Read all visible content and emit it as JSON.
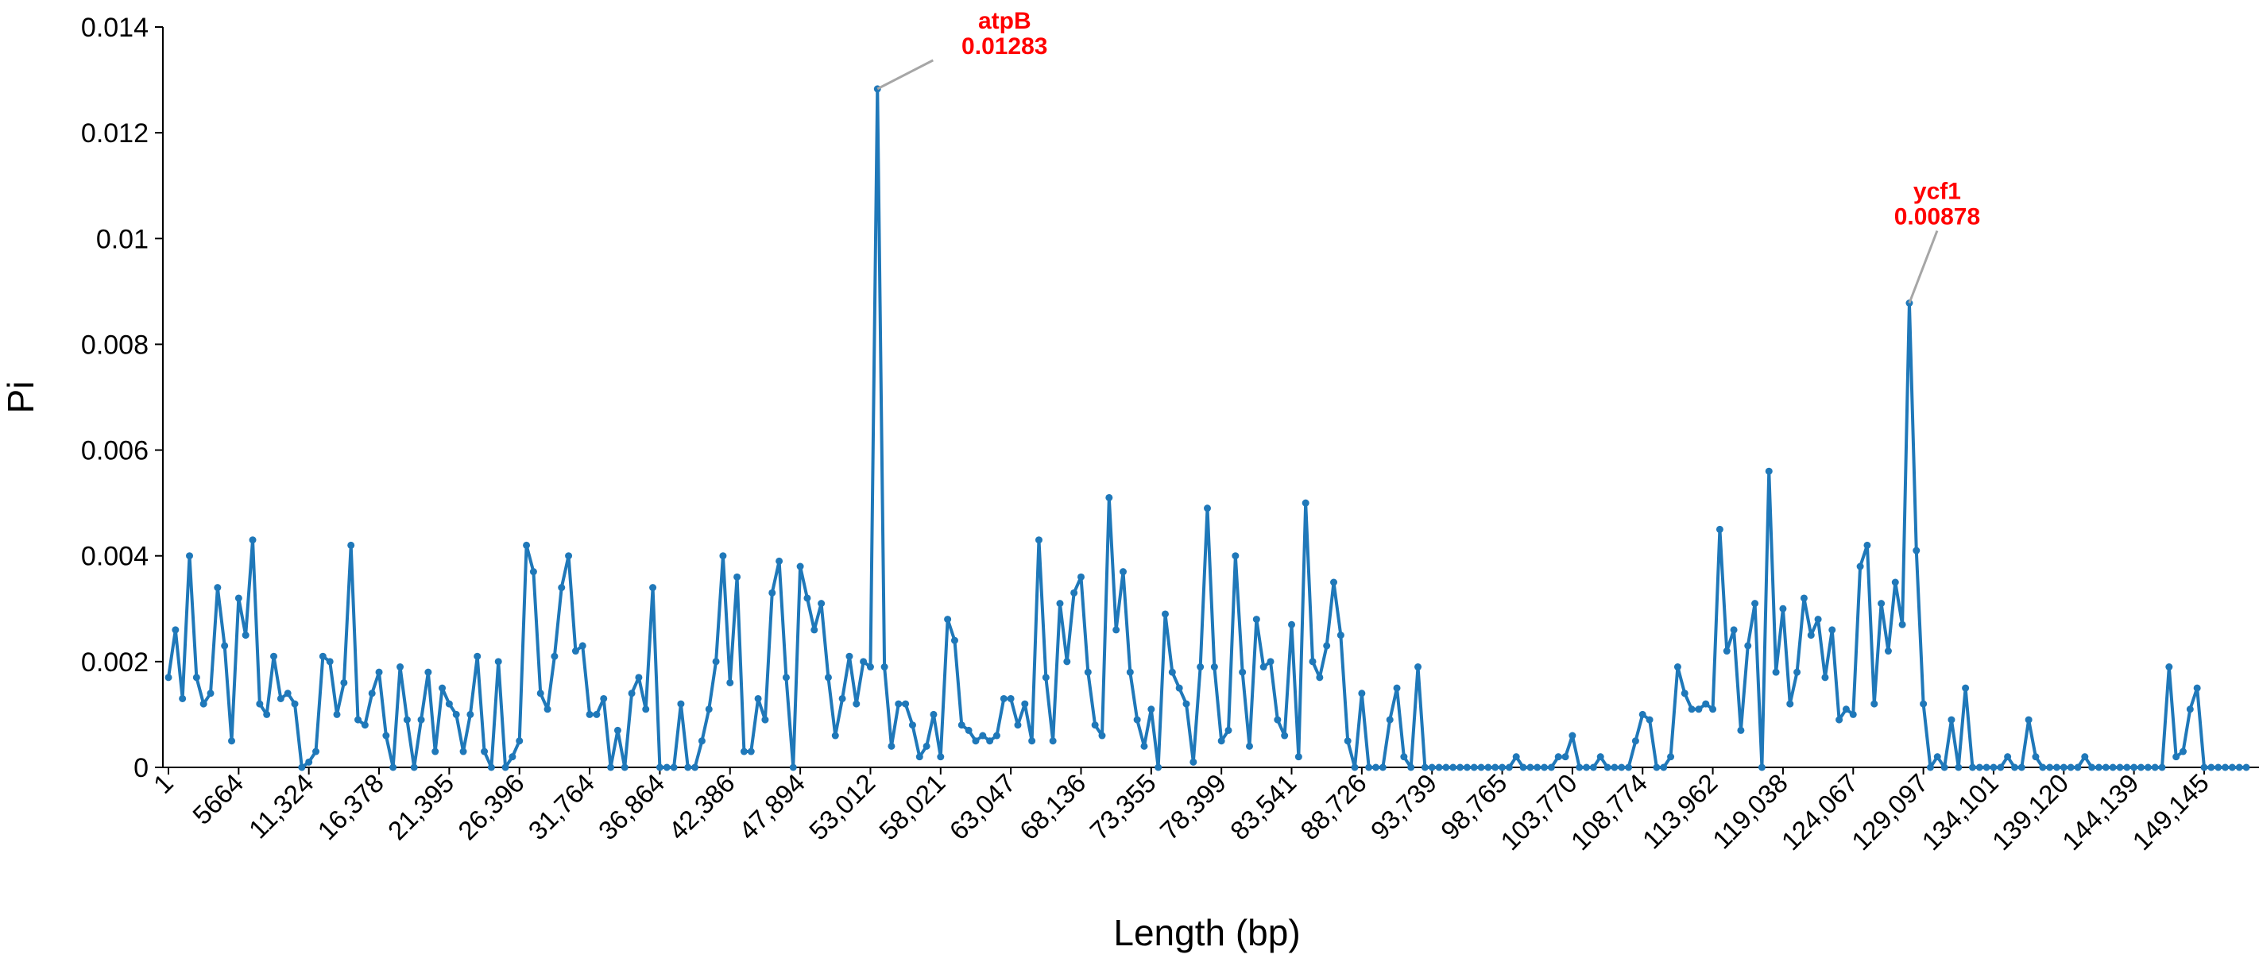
{
  "chart_data": {
    "type": "line",
    "y_label": "Pi",
    "x_label": "Length (bp)",
    "color": "#1f78b9",
    "annotation_color": "#ff0000",
    "categories": [
      "1",
      null,
      null,
      null,
      null,
      null,
      null,
      null,
      null,
      null,
      "5664",
      null,
      null,
      null,
      null,
      null,
      null,
      null,
      null,
      null,
      "11,324",
      null,
      null,
      null,
      null,
      null,
      null,
      null,
      null,
      null,
      "16,378",
      null,
      null,
      null,
      null,
      null,
      null,
      null,
      null,
      null,
      "21,395",
      null,
      null,
      null,
      null,
      null,
      null,
      null,
      null,
      null,
      "26,396",
      null,
      null,
      null,
      null,
      null,
      null,
      null,
      null,
      null,
      "31,764",
      null,
      null,
      null,
      null,
      null,
      null,
      null,
      null,
      null,
      "36,864",
      null,
      null,
      null,
      null,
      null,
      null,
      null,
      null,
      null,
      "42,386",
      null,
      null,
      null,
      null,
      null,
      null,
      null,
      null,
      null,
      "47,894",
      null,
      null,
      null,
      null,
      null,
      null,
      null,
      null,
      null,
      "53,012",
      null,
      null,
      null,
      null,
      null,
      null,
      null,
      null,
      null,
      "58,021",
      null,
      null,
      null,
      null,
      null,
      null,
      null,
      null,
      null,
      "63,047",
      null,
      null,
      null,
      null,
      null,
      null,
      null,
      null,
      null,
      "68,136",
      null,
      null,
      null,
      null,
      null,
      null,
      null,
      null,
      null,
      "73,355",
      null,
      null,
      null,
      null,
      null,
      null,
      null,
      null,
      null,
      "78,399",
      null,
      null,
      null,
      null,
      null,
      null,
      null,
      null,
      null,
      "83,541",
      null,
      null,
      null,
      null,
      null,
      null,
      null,
      null,
      null,
      "88,726",
      null,
      null,
      null,
      null,
      null,
      null,
      null,
      null,
      null,
      "93,739",
      null,
      null,
      null,
      null,
      null,
      null,
      null,
      null,
      null,
      "98,765",
      null,
      null,
      null,
      null,
      null,
      null,
      null,
      null,
      null,
      "103,770",
      null,
      null,
      null,
      null,
      null,
      null,
      null,
      null,
      null,
      "108,774",
      null,
      null,
      null,
      null,
      null,
      null,
      null,
      null,
      null,
      "113,962",
      null,
      null,
      null,
      null,
      null,
      null,
      null,
      null,
      null,
      "119,038",
      null,
      null,
      null,
      null,
      null,
      null,
      null,
      null,
      null,
      "124,067",
      null,
      null,
      null,
      null,
      null,
      null,
      null,
      null,
      null,
      "129,097",
      null,
      null,
      null,
      null,
      null,
      null,
      null,
      null,
      null,
      "134,101",
      null,
      null,
      null,
      null,
      null,
      null,
      null,
      null,
      null,
      "139,120",
      null,
      null,
      null,
      null,
      null,
      null,
      null,
      null,
      null,
      "144,139",
      null,
      null,
      null,
      null,
      null,
      null,
      null,
      null,
      null,
      "149,145",
      null,
      null,
      null,
      null,
      null,
      null
    ],
    "values": [
      0.0017,
      0.0026,
      0.0013,
      0.004,
      0.0017,
      0.0012,
      0.0014,
      0.0034,
      0.0023,
      0.0005,
      0.0032,
      0.0025,
      0.0043,
      0.0012,
      0.001,
      0.0021,
      0.0013,
      0.0014,
      0.0012,
      0,
      0.0001,
      0.0003,
      0.0021,
      0.002,
      0.001,
      0.0016,
      0.0042,
      0.0009,
      0.0008,
      0.0014,
      0.0018,
      0.0006,
      0,
      0.0019,
      0.0009,
      0,
      0.0009,
      0.0018,
      0.0003,
      0.0015,
      0.0012,
      0.001,
      0.0003,
      0.001,
      0.0021,
      0.0003,
      0,
      0.002,
      0,
      0.0002,
      0.0005,
      0.0042,
      0.0037,
      0.0014,
      0.0011,
      0.0021,
      0.0034,
      0.004,
      0.0022,
      0.0023,
      0.001,
      0.001,
      0.0013,
      0,
      0.0007,
      0,
      0.0014,
      0.0017,
      0.0011,
      0.0034,
      0,
      0,
      0,
      0.0012,
      0,
      0,
      0.0005,
      0.0011,
      0.002,
      0.004,
      0.0016,
      0.0036,
      0.0003,
      0.0003,
      0.0013,
      0.0009,
      0.0033,
      0.0039,
      0.0017,
      0,
      0.0038,
      0.0032,
      0.0026,
      0.0031,
      0.0017,
      0.0006,
      0.0013,
      0.0021,
      0.0012,
      0.002,
      0.0019,
      0.01283,
      0.0019,
      0.0004,
      0.0012,
      0.0012,
      0.0008,
      0.0002,
      0.0004,
      0.001,
      0.0002,
      0.0028,
      0.0024,
      0.0008,
      0.0007,
      0.0005,
      0.0006,
      0.0005,
      0.0006,
      0.0013,
      0.0013,
      0.0008,
      0.0012,
      0.0005,
      0.0043,
      0.0017,
      0.0005,
      0.0031,
      0.002,
      0.0033,
      0.0036,
      0.0018,
      0.0008,
      0.0006,
      0.0051,
      0.0026,
      0.0037,
      0.0018,
      0.0009,
      0.0004,
      0.0011,
      0,
      0.0029,
      0.0018,
      0.0015,
      0.0012,
      0.0001,
      0.0019,
      0.0049,
      0.0019,
      0.0005,
      0.0007,
      0.004,
      0.0018,
      0.0004,
      0.0028,
      0.0019,
      0.002,
      0.0009,
      0.0006,
      0.0027,
      0.0002,
      0.005,
      0.002,
      0.0017,
      0.0023,
      0.0035,
      0.0025,
      0.0005,
      0,
      0.0014,
      0,
      0,
      0,
      0.0009,
      0.0015,
      0.0002,
      0,
      0.0019,
      0,
      0,
      0,
      0,
      0,
      0,
      0,
      0,
      0,
      0,
      0,
      0,
      0,
      0.0002,
      0,
      0,
      0,
      0,
      0,
      0.0002,
      0.0002,
      0.0006,
      0,
      0,
      0,
      0.0002,
      0,
      0,
      0,
      0,
      0.0005,
      0.001,
      0.0009,
      0,
      0,
      0.0002,
      0.0019,
      0.0014,
      0.0011,
      0.0011,
      0.0012,
      0.0011,
      0.0045,
      0.0022,
      0.0026,
      0.0007,
      0.0023,
      0.0031,
      0,
      0.0056,
      0.0018,
      0.003,
      0.0012,
      0.0018,
      0.0032,
      0.0025,
      0.0028,
      0.0017,
      0.0026,
      0.0009,
      0.0011,
      0.001,
      0.0038,
      0.0042,
      0.0012,
      0.0031,
      0.0022,
      0.0035,
      0.0027,
      0.00878,
      0.0041,
      0.0012,
      0,
      0.0002,
      0,
      0.0009,
      0,
      0.0015,
      0,
      0,
      0,
      0,
      0,
      0.0002,
      0,
      0,
      0.0009,
      0.0002,
      0,
      0,
      0,
      0,
      0,
      0,
      0.0002,
      0,
      0,
      0,
      0,
      0,
      0,
      0,
      0,
      0,
      0,
      0,
      0.0019,
      0.0002,
      0.0003,
      0.0011,
      0.0015,
      0,
      0,
      0,
      0,
      0,
      0,
      0
    ],
    "annotations": [
      {
        "text": "atpB",
        "value": 0.01283
      },
      {
        "text": "ycf1",
        "value": 0.00878
      }
    ],
    "ylim": [
      0,
      0.014
    ],
    "yticks": [
      0,
      0.002,
      0.004,
      0.006,
      0.008,
      0.01,
      0.012,
      0.014
    ]
  }
}
